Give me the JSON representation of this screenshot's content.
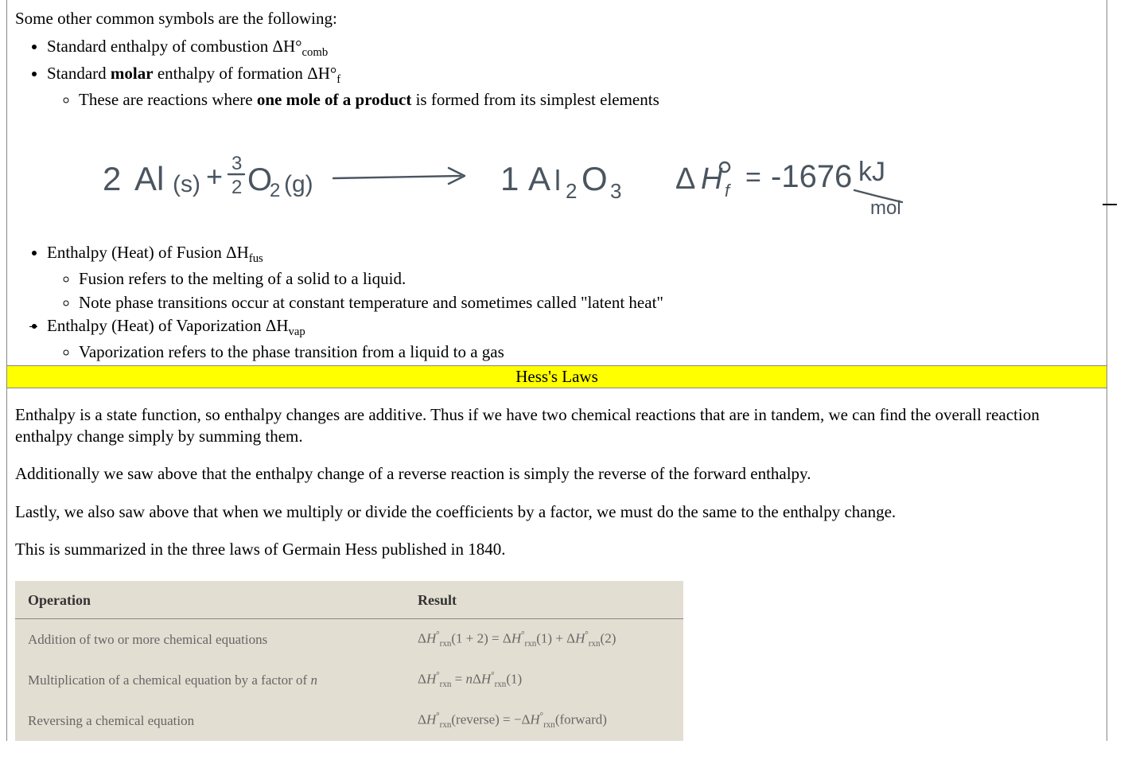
{
  "intro": "Some other common symbols are the following:",
  "bullets": {
    "b1_label": "Standard enthalpy of combustion  ",
    "b1_sym_pre": "ΔH°",
    "b1_sym_sub": "comb",
    "b2_pre": "Standard ",
    "b2_bold": "molar",
    "b2_post": " enthalpy of formation  ",
    "b2_sym_pre": "ΔH°",
    "b2_sym_sub": "f",
    "b2_sub1_pre": "These are reactions where ",
    "b2_sub1_bold": "one mole of a product",
    "b2_sub1_post": " is formed from its simplest elements",
    "b3_label": "Enthalpy (Heat) of Fusion  ",
    "b3_sym_pre": "ΔH",
    "b3_sym_sub": "fus",
    "b3_sub1": "Fusion refers to the melting of a solid to a liquid.",
    "b3_sub2": "Note phase transitions occur at constant temperature and sometimes called \"latent heat\"",
    "b4_label": "Enthalpy (Heat) of Vaporization ",
    "b4_sym_pre": "ΔH",
    "b4_sym_sub": "vap",
    "b4_sub1": "Vaporization refers to the phase transition from a liquid to a gas"
  },
  "handwritten": {
    "eq_left_coef": "2",
    "eq_left_el": "Al",
    "eq_left_state": "(s)",
    "eq_plus": "+",
    "eq_frac_num": "3",
    "eq_frac_den": "2",
    "eq_o2": "O₂",
    "eq_o2_state": "(g)",
    "eq_arrow": "→",
    "eq_prod_coef": "1",
    "eq_prod": "Al₂O₃",
    "eq_dh": "ΔH°f",
    "eq_eq": "=",
    "eq_val": "-1676",
    "eq_unit_top": "kJ",
    "eq_unit_bot": "mol",
    "stroke_color": "#4a5560",
    "stroke_width": 2.4
  },
  "hess_title": "Hess's Laws",
  "p1": "Enthalpy is a state function, so enthalpy changes are additive. Thus if we have two chemical reactions that are in tandem, we can find the overall reaction enthalpy change simply by summing them.",
  "p2": "Additionally we saw above that the enthalpy change of a reverse reaction is simply the reverse of the forward enthalpy.",
  "p3": "Lastly, we also saw above that when we multiply or divide the coefficients by a factor, we must do the same to the enthalpy change.",
  "p4": "This is summarized in the three laws of Germain Hess published in 1840.",
  "table": {
    "header_operation": "Operation",
    "header_result": "Result",
    "background_color": "#e3ded2",
    "header_border_color": "#888888",
    "text_color": "#666666",
    "header_text_color": "#333333",
    "rows": [
      {
        "op": "Addition of two or more chemical equations",
        "res_parts": [
          "Δ",
          "H",
          "°",
          "rxn",
          "(1 + 2) = Δ",
          "H",
          "°",
          "rxn",
          "(1) + Δ",
          "H",
          "°",
          "rxn",
          "(2)"
        ]
      },
      {
        "op_pre": "Multiplication of a chemical equation by a factor of ",
        "op_it": "n",
        "res_parts": [
          "Δ",
          "H",
          "°",
          "rxn",
          " = ",
          "n",
          "Δ",
          "H",
          "°",
          "rxn",
          "(1)"
        ]
      },
      {
        "op": "Reversing a chemical equation",
        "res_parts": [
          "Δ",
          "H",
          "°",
          "rxn",
          "(reverse) = −Δ",
          "H",
          "°",
          "rxn",
          "(forward)"
        ]
      }
    ]
  }
}
